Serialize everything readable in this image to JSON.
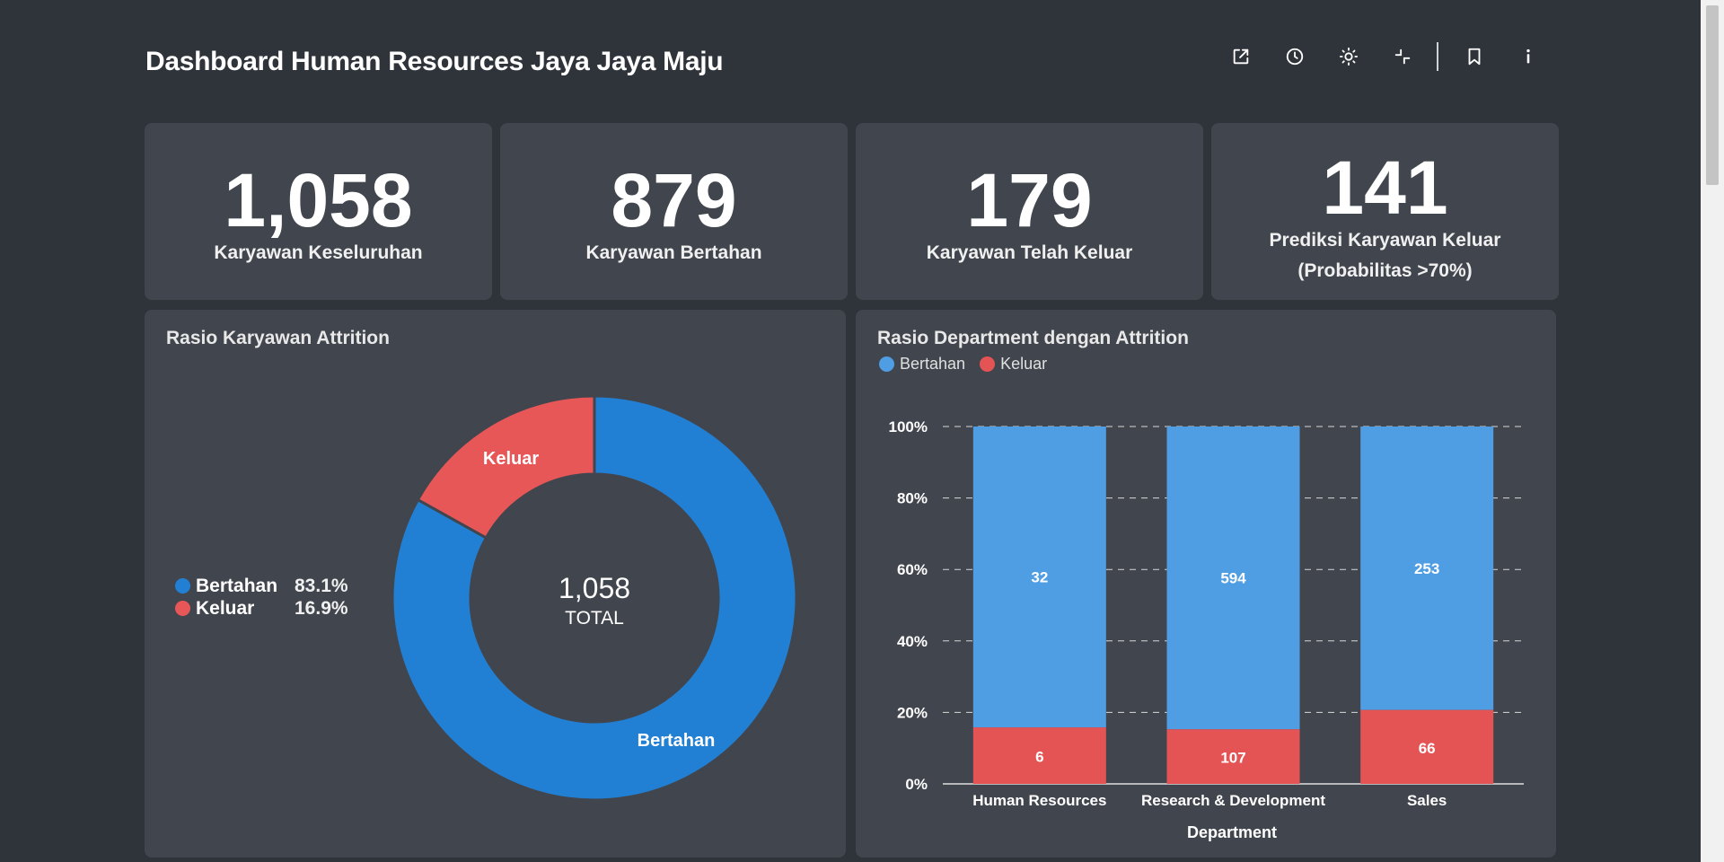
{
  "header": {
    "title": "Dashboard Human Resources Jaya Jaya Maju"
  },
  "toolbar": {
    "icons": [
      "share-icon",
      "clock-icon",
      "sun-icon",
      "collapse-icon",
      "bookmark-icon",
      "info-icon"
    ]
  },
  "kpis": [
    {
      "value": "1,058",
      "label": "Karyawan Keseluruhan"
    },
    {
      "value": "879",
      "label": "Karyawan Bertahan"
    },
    {
      "value": "179",
      "label": "Karyawan Telah Keluar"
    },
    {
      "value": "141",
      "label_line1": "Prediksi Karyawan Keluar",
      "label_line2": "(Probabilitas >70%)"
    }
  ],
  "pie": {
    "title": "Rasio Karyawan Attrition",
    "center_value": "1,058",
    "center_label": "TOTAL",
    "legend": [
      {
        "name": "Bertahan",
        "pct": "83.1%"
      },
      {
        "name": "Keluar",
        "pct": "16.9%"
      }
    ],
    "slice_labels": [
      "Bertahan",
      "Keluar"
    ]
  },
  "bar": {
    "title": "Rasio Department dengan Attrition",
    "legend": [
      "Bertahan",
      "Keluar"
    ],
    "xlabel": "Department"
  },
  "colors": {
    "bertahan_pie": "#2280d4",
    "keluar_pie": "#e75757",
    "bertahan_bar": "#4f9de3",
    "keluar_bar": "#e55454"
  },
  "chart_data": [
    {
      "type": "pie",
      "title": "Rasio Karyawan Attrition",
      "categories": [
        "Bertahan",
        "Keluar"
      ],
      "values": [
        879,
        179
      ],
      "percent": [
        83.1,
        16.9
      ],
      "total": 1058
    },
    {
      "type": "bar",
      "stacked": "percent",
      "title": "Rasio Department dengan Attrition",
      "categories": [
        "Human Resources",
        "Research & Development",
        "Sales"
      ],
      "series": [
        {
          "name": "Bertahan",
          "values": [
            32,
            594,
            253
          ]
        },
        {
          "name": "Keluar",
          "values": [
            6,
            107,
            66
          ]
        }
      ],
      "xlabel": "Department",
      "ylabel": "",
      "ylim": [
        0,
        100
      ],
      "yticks": [
        "0%",
        "20%",
        "40%",
        "60%",
        "80%",
        "100%"
      ],
      "grid": true,
      "legend": "top-left"
    }
  ]
}
